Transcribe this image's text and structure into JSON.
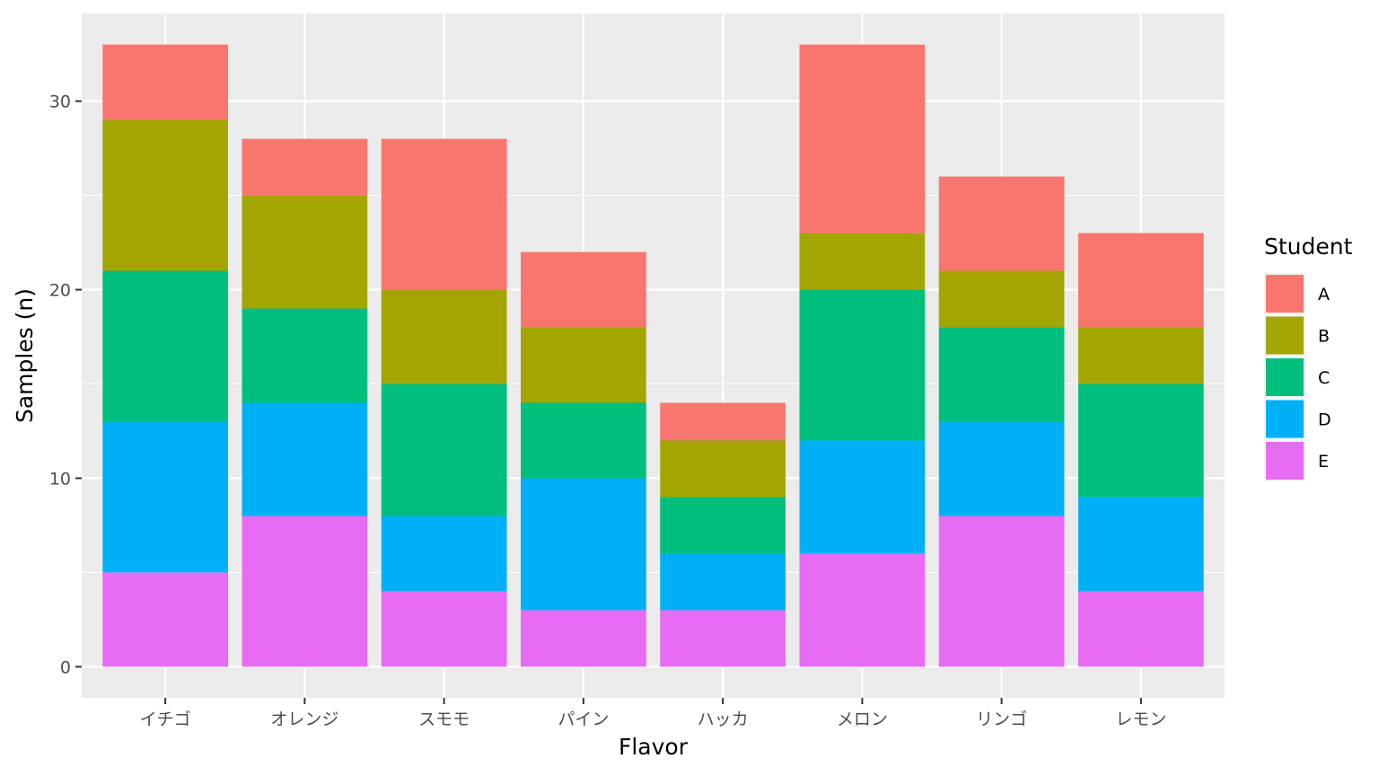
{
  "chart_data": {
    "type": "bar",
    "stacked": true,
    "xlabel": "Flavor",
    "ylabel": "Samples (n)",
    "categories": [
      "イチゴ",
      "オレンジ",
      "スモモ",
      "パイン",
      "ハッカ",
      "メロン",
      "リンゴ",
      "レモン"
    ],
    "series": [
      {
        "name": "E",
        "color": "#E76BF3",
        "values": [
          5,
          8,
          4,
          3,
          3,
          6,
          8,
          4
        ]
      },
      {
        "name": "D",
        "color": "#00B0F6",
        "values": [
          8,
          6,
          4,
          7,
          3,
          6,
          5,
          5
        ]
      },
      {
        "name": "C",
        "color": "#00BF7D",
        "values": [
          8,
          5,
          7,
          4,
          3,
          8,
          5,
          6
        ]
      },
      {
        "name": "B",
        "color": "#A3A500",
        "values": [
          8,
          6,
          5,
          4,
          3,
          3,
          3,
          3
        ]
      },
      {
        "name": "A",
        "color": "#F8766D",
        "values": [
          4,
          3,
          8,
          4,
          2,
          10,
          5,
          5
        ]
      }
    ],
    "ylim": [
      -1.65,
      34.65
    ],
    "yticks": [
      0,
      10,
      20,
      30
    ],
    "grid": true,
    "legend": {
      "title": "Student",
      "position": "right",
      "entries": [
        "A",
        "B",
        "C",
        "D",
        "E"
      ]
    }
  }
}
